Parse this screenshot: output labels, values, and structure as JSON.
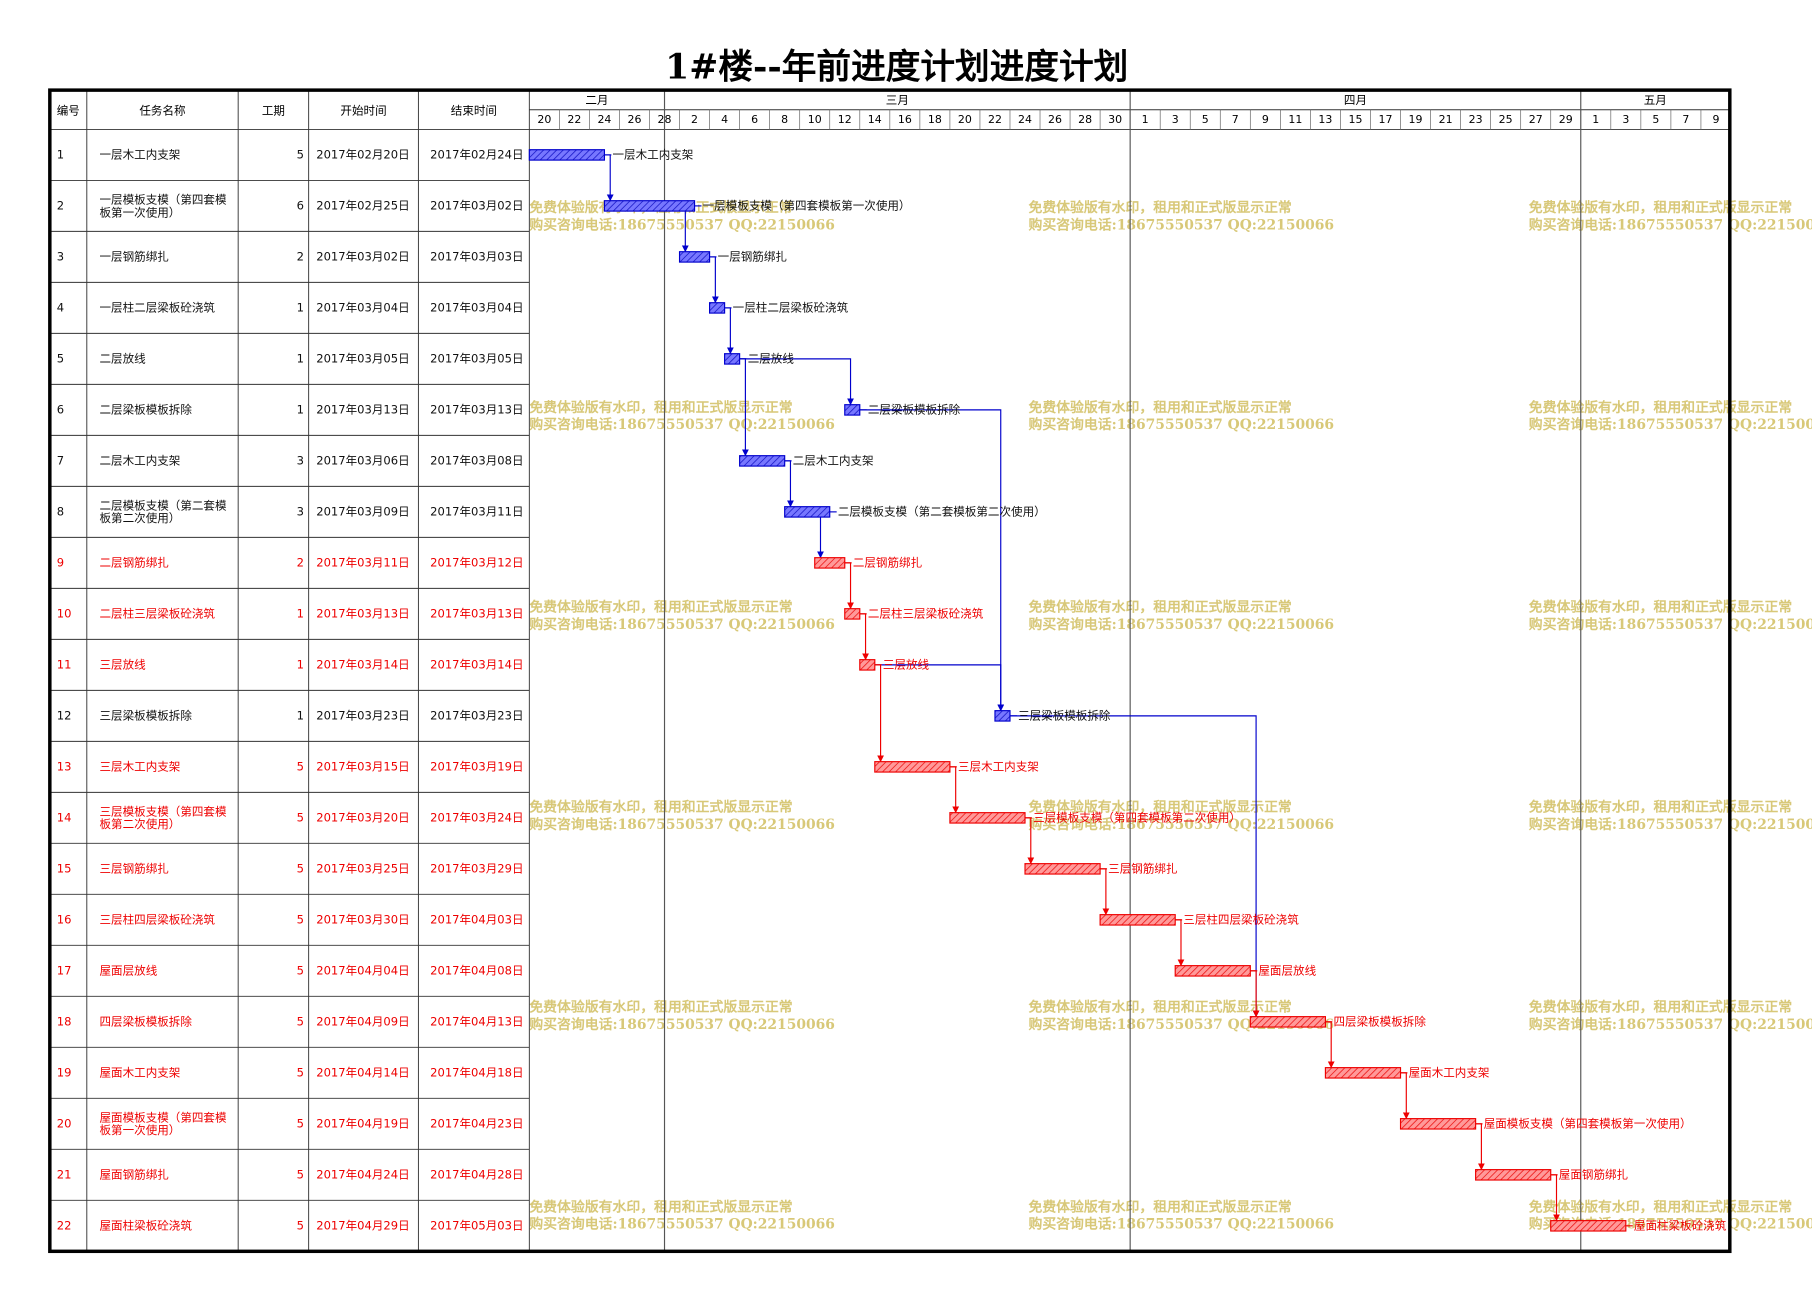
{
  "title": "1#楼--年前进度计划进度计划",
  "table": {
    "headers": [
      "编号",
      "任务名称",
      "工期",
      "开始时间",
      "结束时间"
    ],
    "rows": [
      {
        "id": 1,
        "name": "一层木工内支架",
        "duration": 5,
        "start": "2017年02月20日",
        "end": "2017年02月24日",
        "critical": false
      },
      {
        "id": 2,
        "name": "一层模板支模（第四套模板第一次使用）",
        "duration": 6,
        "start": "2017年02月25日",
        "end": "2017年03月02日",
        "critical": false
      },
      {
        "id": 3,
        "name": "一层钢筋绑扎",
        "duration": 2,
        "start": "2017年03月02日",
        "end": "2017年03月03日",
        "critical": false
      },
      {
        "id": 4,
        "name": "一层柱二层梁板砼浇筑",
        "duration": 1,
        "start": "2017年03月04日",
        "end": "2017年03月04日",
        "critical": false
      },
      {
        "id": 5,
        "name": "二层放线",
        "duration": 1,
        "start": "2017年03月05日",
        "end": "2017年03月05日",
        "critical": false
      },
      {
        "id": 6,
        "name": "二层梁板模板拆除",
        "duration": 1,
        "start": "2017年03月13日",
        "end": "2017年03月13日",
        "critical": false
      },
      {
        "id": 7,
        "name": "二层木工内支架",
        "duration": 3,
        "start": "2017年03月06日",
        "end": "2017年03月08日",
        "critical": false
      },
      {
        "id": 8,
        "name": "二层模板支模（第二套模板第二次使用）",
        "duration": 3,
        "start": "2017年03月09日",
        "end": "2017年03月11日",
        "critical": false
      },
      {
        "id": 9,
        "name": "二层钢筋绑扎",
        "duration": 2,
        "start": "2017年03月11日",
        "end": "2017年03月12日",
        "critical": true
      },
      {
        "id": 10,
        "name": "二层柱三层梁板砼浇筑",
        "duration": 1,
        "start": "2017年03月13日",
        "end": "2017年03月13日",
        "critical": true
      },
      {
        "id": 11,
        "name": "三层放线",
        "duration": 1,
        "start": "2017年03月14日",
        "end": "2017年03月14日",
        "critical": true
      },
      {
        "id": 12,
        "name": "三层梁板模板拆除",
        "duration": 1,
        "start": "2017年03月23日",
        "end": "2017年03月23日",
        "critical": false
      },
      {
        "id": 13,
        "name": "三层木工内支架",
        "duration": 5,
        "start": "2017年03月15日",
        "end": "2017年03月19日",
        "critical": true
      },
      {
        "id": 14,
        "name": "三层模板支模（第四套模板第二次使用）",
        "duration": 5,
        "start": "2017年03月20日",
        "end": "2017年03月24日",
        "critical": true
      },
      {
        "id": 15,
        "name": "三层钢筋绑扎",
        "duration": 5,
        "start": "2017年03月25日",
        "end": "2017年03月29日",
        "critical": true
      },
      {
        "id": 16,
        "name": "三层柱四层梁板砼浇筑",
        "duration": 5,
        "start": "2017年03月30日",
        "end": "2017年04月03日",
        "critical": true
      },
      {
        "id": 17,
        "name": "屋面层放线",
        "duration": 5,
        "start": "2017年04月04日",
        "end": "2017年04月08日",
        "critical": true
      },
      {
        "id": 18,
        "name": "四层梁板模板拆除",
        "duration": 5,
        "start": "2017年04月09日",
        "end": "2017年04月13日",
        "critical": true
      },
      {
        "id": 19,
        "name": "屋面木工内支架",
        "duration": 5,
        "start": "2017年04月14日",
        "end": "2017年04月18日",
        "critical": true
      },
      {
        "id": 20,
        "name": "屋面模板支模（第四套模板第一次使用）",
        "duration": 5,
        "start": "2017年04月19日",
        "end": "2017年04月23日",
        "critical": true
      },
      {
        "id": 21,
        "name": "屋面钢筋绑扎",
        "duration": 5,
        "start": "2017年04月24日",
        "end": "2017年04月28日",
        "critical": true
      },
      {
        "id": 22,
        "name": "屋面柱梁板砼浇筑",
        "duration": 5,
        "start": "2017年04月29日",
        "end": "2017年05月03日",
        "critical": true
      }
    ]
  },
  "timeline": {
    "months": [
      "二月",
      "三月",
      "四月",
      "五月"
    ],
    "days": [
      20,
      22,
      24,
      26,
      28,
      2,
      4,
      6,
      8,
      10,
      12,
      14,
      16,
      18,
      20,
      22,
      24,
      26,
      28,
      30,
      1,
      3,
      5,
      7,
      9,
      11,
      13,
      15,
      17,
      19,
      21,
      23,
      25,
      27,
      29,
      1,
      3,
      5,
      7,
      9
    ]
  },
  "watermark": {
    "line1": "免费体验版有水印，租用和正式版显示正常",
    "line2": "购买咨询电话:18675550537 QQ:22150066"
  }
}
